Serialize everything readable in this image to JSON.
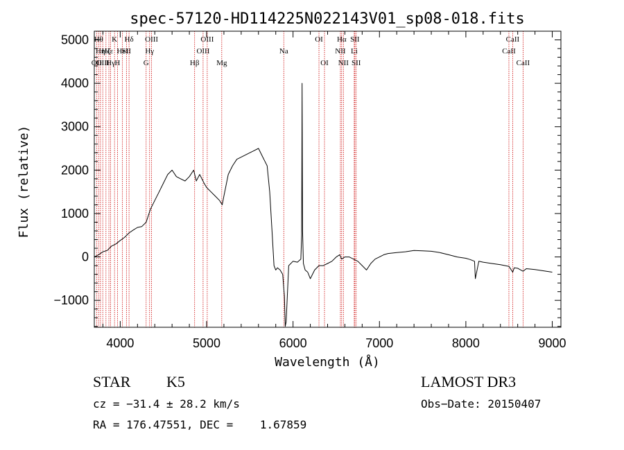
{
  "chart_data": {
    "type": "line",
    "title": "spec-57120-HD114225N022143V01_sp08-018.fits",
    "xlabel": "Wavelength (Å)",
    "ylabel": "Flux (relative)",
    "xlim": [
      3700,
      9100
    ],
    "ylim": [
      -1620,
      5200
    ],
    "xticks": [
      4000,
      5000,
      6000,
      7000,
      8000,
      9000
    ],
    "yticks": [
      -1000,
      0,
      1000,
      2000,
      3000,
      4000,
      5000
    ],
    "grid": false,
    "series": [
      {
        "x": [
          3700,
          3750,
          3800,
          3850,
          3900,
          3950,
          4000,
          4050,
          4100,
          4150,
          4200,
          4250,
          4300,
          4350,
          4400,
          4450,
          4500,
          4550,
          4600,
          4650,
          4700,
          4750,
          4800,
          4850,
          4880,
          4920,
          4970,
          5000,
          5050,
          5100,
          5150,
          5180,
          5200,
          5250,
          5300,
          5350,
          5400,
          5450,
          5500,
          5550,
          5600,
          5650,
          5700,
          5730,
          5760,
          5780,
          5800,
          5820,
          5850,
          5880,
          5900,
          5910,
          5920,
          5950,
          6000,
          6050,
          6090,
          6100,
          6105,
          6110,
          6120,
          6140,
          6170,
          6200,
          6250,
          6300,
          6350,
          6400,
          6450,
          6500,
          6540,
          6563,
          6600,
          6650,
          6700,
          6750,
          6800,
          6850,
          6900,
          6950,
          7000,
          7050,
          7100,
          7200,
          7300,
          7400,
          7500,
          7600,
          7700,
          7800,
          7900,
          8000,
          8050,
          8100,
          8110,
          8150,
          8200,
          8300,
          8400,
          8500,
          8542,
          8560,
          8600,
          8662,
          8700,
          8800,
          8900,
          9000
        ],
        "y": [
          0,
          50,
          120,
          150,
          250,
          300,
          380,
          450,
          550,
          620,
          680,
          700,
          800,
          1100,
          1300,
          1500,
          1700,
          1900,
          2000,
          1850,
          1800,
          1750,
          1850,
          2000,
          1750,
          1900,
          1700,
          1600,
          1500,
          1400,
          1300,
          1200,
          1400,
          1900,
          2100,
          2250,
          2300,
          2350,
          2400,
          2450,
          2500,
          2300,
          2100,
          1500,
          500,
          -200,
          -300,
          -250,
          -300,
          -400,
          -900,
          -1600,
          -1500,
          -200,
          -100,
          -120,
          -50,
          500,
          4000,
          600,
          -150,
          -300,
          -350,
          -500,
          -300,
          -200,
          -200,
          -150,
          -100,
          0,
          50,
          -50,
          0,
          0,
          -50,
          -100,
          -200,
          -300,
          -150,
          -50,
          0,
          50,
          80,
          100,
          120,
          150,
          140,
          130,
          100,
          50,
          0,
          -30,
          -60,
          -100,
          -500,
          -100,
          -120,
          -150,
          -180,
          -220,
          -350,
          -250,
          -260,
          -330,
          -270,
          -290,
          -320,
          -350
        ]
      }
    ],
    "line_markers": [
      {
        "x": 3727,
        "label": "OII",
        "row": 2
      },
      {
        "x": 3750,
        "label": "Hθ",
        "row": 0
      },
      {
        "x": 3771,
        "label": "Hη",
        "row": 1
      },
      {
        "x": 3798,
        "label": "OIII",
        "row": 2
      },
      {
        "x": 3835,
        "label": "Hζ",
        "row": 1
      },
      {
        "x": 3869,
        "label": "Hε",
        "row": 1
      },
      {
        "x": 3889,
        "label": "Hγ",
        "row": 2
      },
      {
        "x": 3934,
        "label": "K",
        "row": 0
      },
      {
        "x": 3968,
        "label": "H",
        "row": 2
      },
      {
        "x": 4026,
        "label": "HeI",
        "row": 1
      },
      {
        "x": 4072,
        "label": "SII",
        "row": 1
      },
      {
        "x": 4102,
        "label": "Hδ",
        "row": 0
      },
      {
        "x": 4300,
        "label": "G",
        "row": 2
      },
      {
        "x": 4340,
        "label": "Hγ",
        "row": 1
      },
      {
        "x": 4363,
        "label": "OIII",
        "row": 0
      },
      {
        "x": 4861,
        "label": "Hβ",
        "row": 2
      },
      {
        "x": 4959,
        "label": "OIII",
        "row": 1
      },
      {
        "x": 5007,
        "label": "OIII",
        "row": 0
      },
      {
        "x": 5175,
        "label": "Mg",
        "row": 2
      },
      {
        "x": 5893,
        "label": "Na",
        "row": 1
      },
      {
        "x": 6300,
        "label": "OI",
        "row": 0
      },
      {
        "x": 6364,
        "label": "OI",
        "row": 2
      },
      {
        "x": 6548,
        "label": "NII",
        "row": 1
      },
      {
        "x": 6563,
        "label": "Hα",
        "row": 0
      },
      {
        "x": 6583,
        "label": "NII",
        "row": 2
      },
      {
        "x": 6708,
        "label": "Li",
        "row": 1
      },
      {
        "x": 6716,
        "label": "SII",
        "row": 0
      },
      {
        "x": 6731,
        "label": "SII",
        "row": 2
      },
      {
        "x": 8498,
        "label": "CaII",
        "row": 1
      },
      {
        "x": 8542,
        "label": "CaII",
        "row": 0
      },
      {
        "x": 8662,
        "label": "CaII",
        "row": 2
      }
    ],
    "marker_color": "#cc0000"
  },
  "info": {
    "object_class": "STAR",
    "subclass": "K5",
    "survey": "LAMOST DR3",
    "cz": "cz = −31.4 ± 28.2 km/s",
    "obs_date": "Obs−Date: 20150407",
    "coords": "RA = 176.47551, DEC =    1.67859"
  }
}
